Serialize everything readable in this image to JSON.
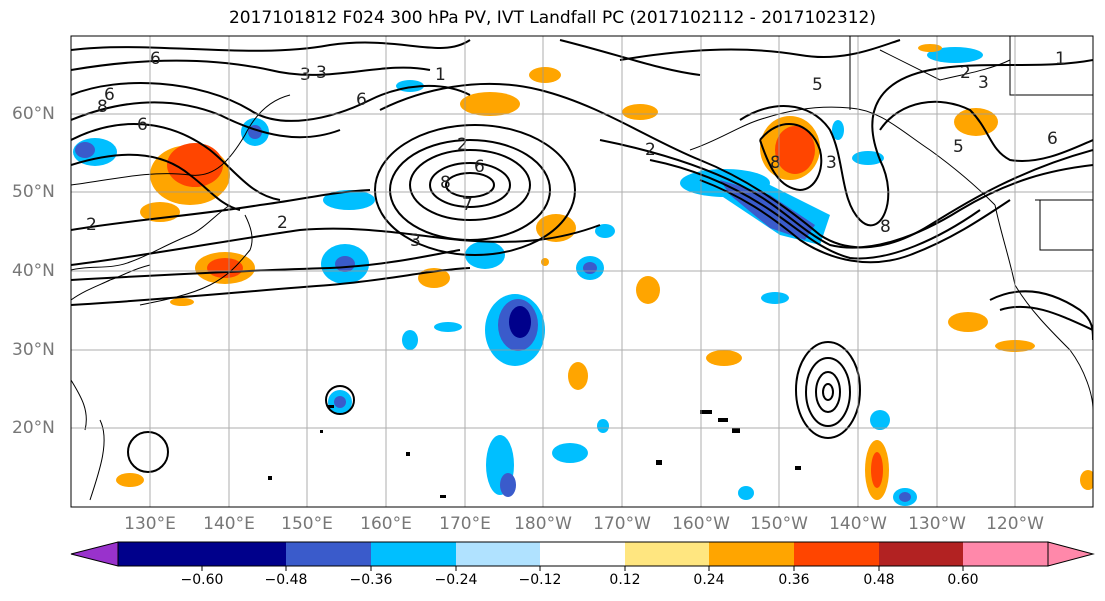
{
  "title": "2017101812 F024 300 hPa PV, IVT Landfall PC (2017102112 - 2017102312)",
  "lat_labels": [
    "60°N",
    "50°N",
    "40°N",
    "30°N",
    "20°N"
  ],
  "lon_labels": [
    "130°E",
    "140°E",
    "150°E",
    "160°E",
    "170°E",
    "180°W",
    "170°W",
    "160°W",
    "150°W",
    "140°W",
    "130°W",
    "120°W"
  ],
  "colorbar": {
    "colors": [
      "#9932CC",
      "#00008B",
      "#3A5BCB",
      "#00BFFF",
      "#B0E2FF",
      "#FFFFFF",
      "#FFE680",
      "#FFA500",
      "#FF4500",
      "#B22222",
      "#FF88AA"
    ],
    "tick_labels": [
      "−0.60",
      "−0.48",
      "−0.36",
      "−0.24",
      "−0.12",
      "0.12",
      "0.24",
      "0.36",
      "0.48",
      "0.60"
    ]
  },
  "contour_labels": [
    "6",
    "3",
    "1",
    "8",
    "6",
    "6",
    "6",
    "2",
    "6",
    "8",
    "7",
    "3",
    "2",
    "2",
    "2",
    "3",
    "5",
    "8",
    "3",
    "8",
    "2",
    "3",
    "1",
    "6",
    "5"
  ]
}
